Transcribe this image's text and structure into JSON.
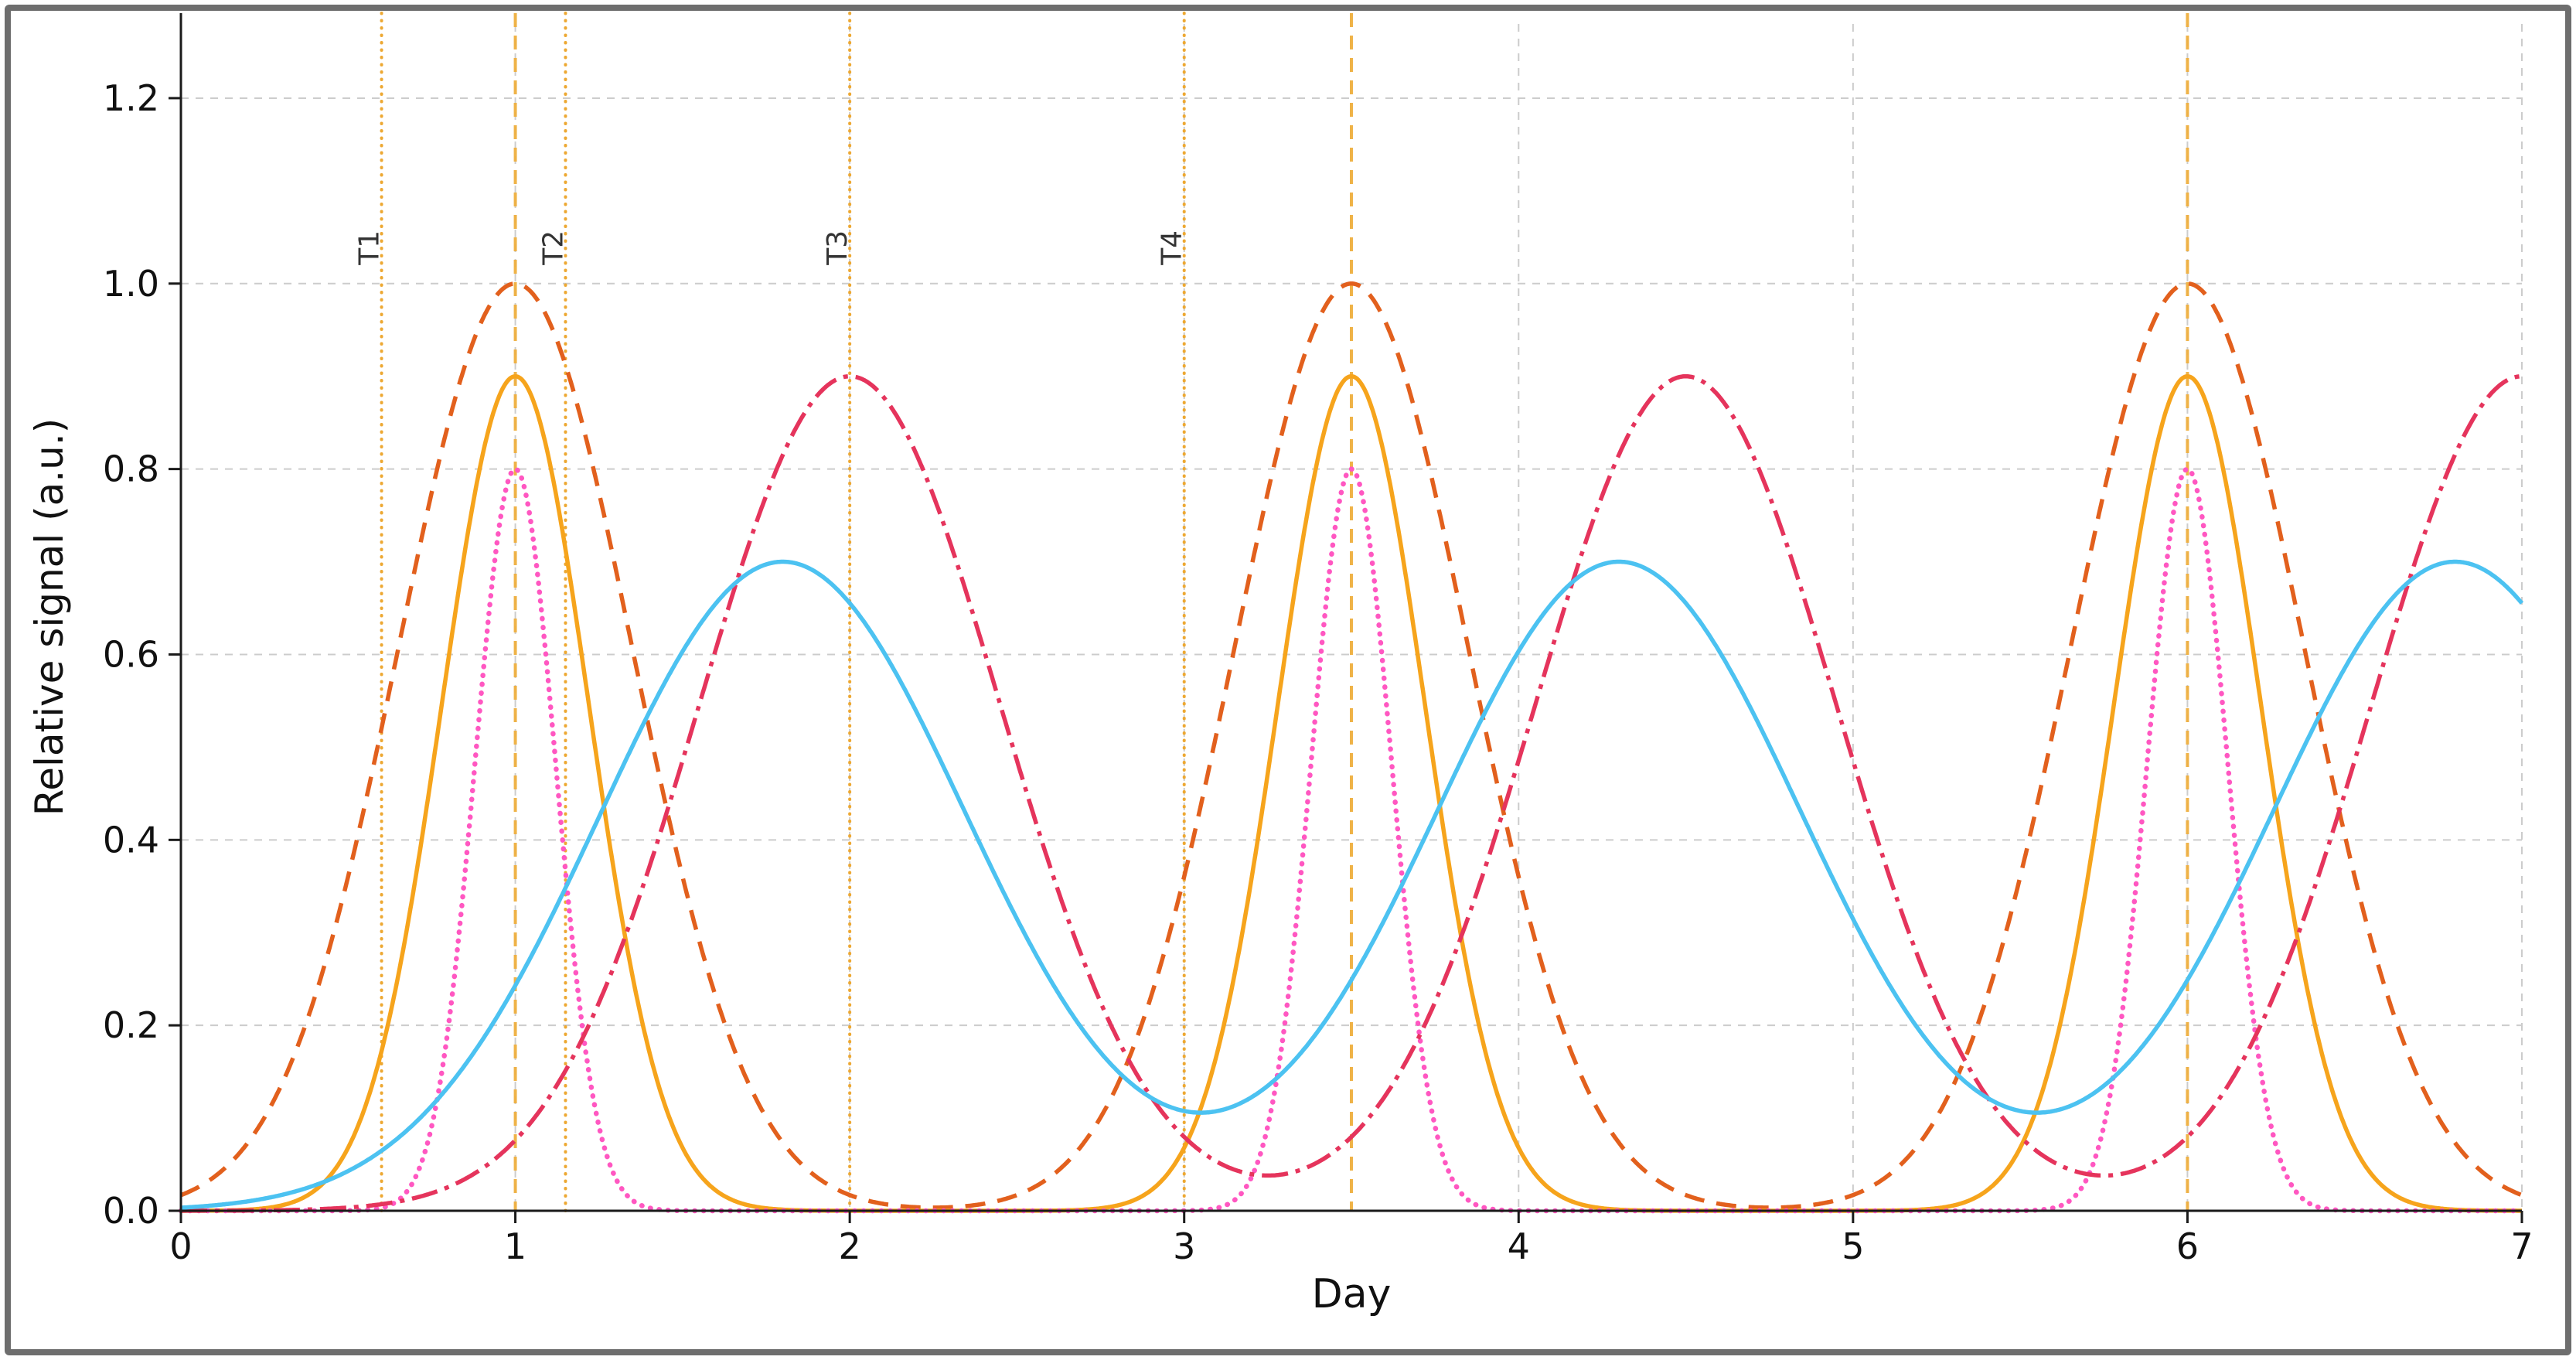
{
  "chart_data": {
    "type": "line",
    "title": "",
    "xlabel": "Day",
    "ylabel": "Relative signal (a.u.)",
    "xlim": [
      0,
      7
    ],
    "ylim": [
      0,
      1.28
    ],
    "x_ticks": [
      0,
      1,
      2,
      3,
      4,
      5,
      6,
      7
    ],
    "x_tick_labels": [
      "0",
      "1",
      "2",
      "3",
      "4",
      "5",
      "6",
      "7"
    ],
    "y_ticks": [
      0.0,
      0.2,
      0.4,
      0.6,
      0.8,
      1.0,
      1.2
    ],
    "y_tick_labels": [
      "0.0",
      "0.2",
      "0.4",
      "0.6",
      "0.8",
      "1.0",
      "1.2"
    ],
    "grid": {
      "on": true,
      "color": "#cccccc",
      "style": "dashed"
    },
    "axis_color": "#1a1a1a",
    "tick_label_color": "#111111",
    "series": [
      {
        "name": "broad-orange-dashed",
        "model": "gaussian_sum",
        "centers": [
          1.0,
          3.5,
          6.0
        ],
        "amplitude": 1.0,
        "sigma": 0.35,
        "color": "#e2601d",
        "line_style": "dashed",
        "line_width": 5.5
      },
      {
        "name": "orange-solid",
        "model": "gaussian_sum",
        "centers": [
          1.0,
          3.5,
          6.0
        ],
        "amplitude": 0.9,
        "sigma": 0.22,
        "color": "#f6a41c",
        "line_style": "solid",
        "line_width": 5.5
      },
      {
        "name": "pink-dotted",
        "model": "gaussian_sum",
        "centers": [
          1.0,
          3.5,
          6.0
        ],
        "amplitude": 0.8,
        "sigma": 0.12,
        "color": "#ff57c1",
        "line_style": "dotted",
        "line_width": 6.5
      },
      {
        "name": "crimson-dashdot",
        "model": "gaussian_sum",
        "centers": [
          2.0,
          4.5,
          7.0
        ],
        "amplitude": 0.9,
        "sigma": 0.45,
        "color": "#e5345c",
        "line_style": "dashdot",
        "line_width": 5.5
      },
      {
        "name": "skyblue-solid",
        "model": "gaussian_sum",
        "centers": [
          1.8,
          4.3,
          6.8
        ],
        "amplitude": 0.7,
        "sigma": 0.55,
        "color": "#4cc2f1",
        "line_style": "solid",
        "line_width": 5.5
      }
    ],
    "peak_marker_lines": {
      "positions": [
        1.0,
        3.5,
        6.0
      ],
      "color": "#efaf3f",
      "style": "dashed",
      "line_width": 4
    },
    "event_lines": {
      "color": "#eda832",
      "style": "dotted",
      "line_width": 4,
      "label_color": "#333333",
      "label_y": 1.02,
      "items": [
        {
          "label": "T1",
          "x": 0.6
        },
        {
          "label": "T2",
          "x": 1.15
        },
        {
          "label": "T3",
          "x": 2.0
        },
        {
          "label": "T4",
          "x": 3.0
        }
      ]
    }
  }
}
